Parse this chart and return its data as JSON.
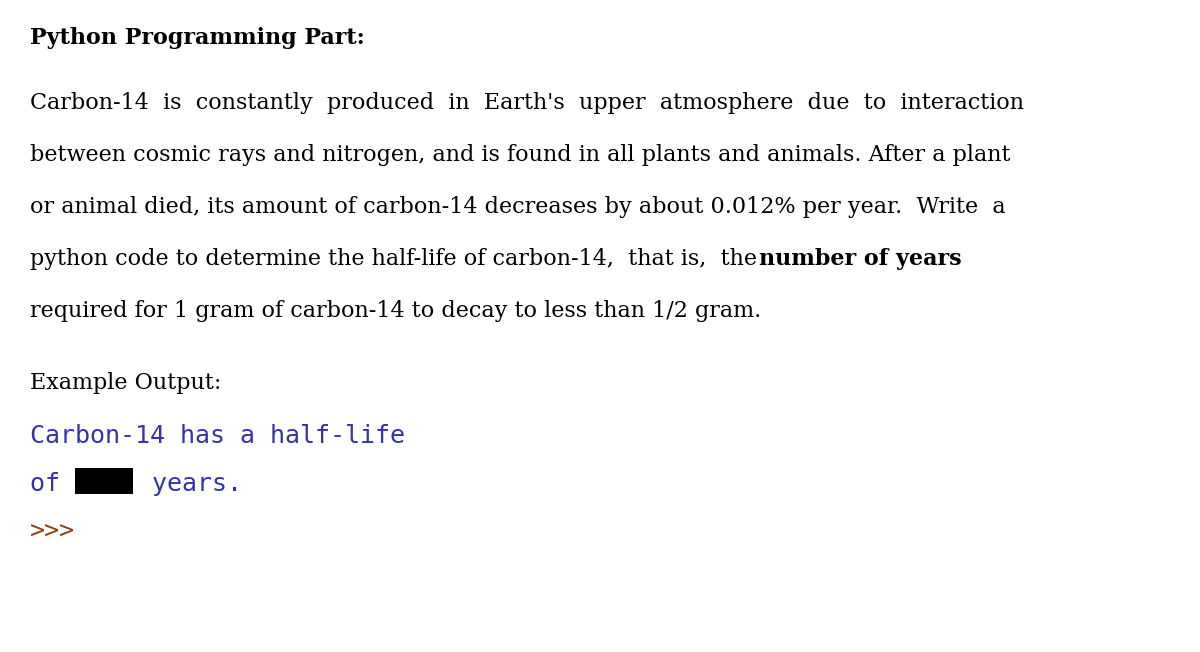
{
  "background_color": "#ffffff",
  "title_text": "Python Programming Part:",
  "title_fontsize": 16,
  "body_fontsize": 16,
  "example_label_fontsize": 16,
  "code_fontsize": 18,
  "code_color": "#3333aa",
  "prompt_color": "#8B4513",
  "redact_color": "#000000",
  "body_lines": [
    "Carbon-14  is  constantly  produced  in  Earth's  upper  atmosphere  due  to  interaction",
    "between cosmic rays and nitrogen, and is found in all plants and animals. After a plant",
    "or animal died, its amount of carbon-14 decreases by about 0.012% per year.  Write  a",
    "python code to determine the half-life of carbon-14,  that is,  the",
    "required for 1 gram of carbon-14 to decay to less than 1/2 gram."
  ],
  "bold_line_prefix": "python code to determine the half-life of carbon-14,  that is,  the",
  "bold_text": "number of years",
  "example_label": "Example Output:",
  "code_line1": "Carbon-14 has a half-life",
  "code_line2_pre": "of ",
  "code_line2_post": " years.",
  "code_line3": ">>>"
}
